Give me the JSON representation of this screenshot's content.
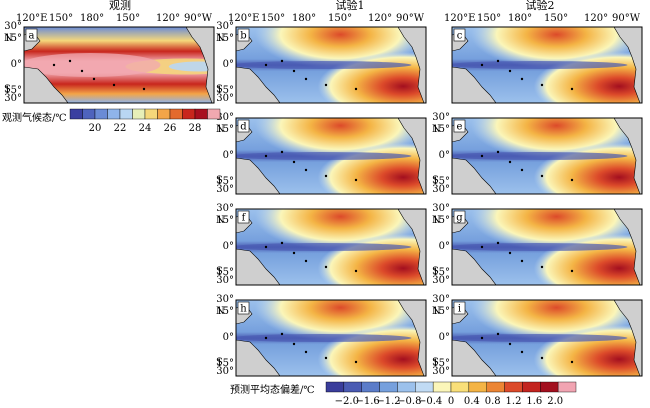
{
  "column_titles": [
    "观测",
    "试验1",
    "试验2"
  ],
  "lon_labels": [
    "120°E",
    "150°",
    "180°",
    "150°",
    "120°",
    "90°W"
  ],
  "lat_labels": [
    "30°",
    "15°",
    "0°",
    "15°",
    "30°"
  ],
  "lat_letters": [
    "N",
    "S"
  ],
  "panel_labels": [
    "a",
    "b",
    "c",
    "d",
    "e",
    "f",
    "g",
    "h",
    "i"
  ],
  "colorbar_obs": {
    "title": "观测气候态/℃",
    "ticks": [
      "20",
      "22",
      "24",
      "26",
      "28"
    ],
    "colors": [
      "#3a3fa0",
      "#4e63bd",
      "#6a8bd6",
      "#8fb4ea",
      "#b9d6f3",
      "#e7efb8",
      "#f5d77a",
      "#f3a548",
      "#e46a2d",
      "#c8261d",
      "#a80f1f",
      "#f1a8b0"
    ]
  },
  "colorbar_bias": {
    "title": "预测平均态偏差/℃",
    "ticks": [
      "−2.0",
      "−1.6",
      "−1.2",
      "−0.8",
      "−0.4",
      "0",
      "0.4",
      "0.8",
      "1.2",
      "1.6",
      "2.0"
    ],
    "colors": [
      "#3a3d9b",
      "#4a5bb3",
      "#5b7cc9",
      "#76a0dd",
      "#9cc1ec",
      "#c1dbf4",
      "#fbf6b9",
      "#f9df79",
      "#f4b445",
      "#ec8534",
      "#dc4a2a",
      "#c3241f",
      "#a30f1f",
      "#f1a4b2"
    ]
  }
}
